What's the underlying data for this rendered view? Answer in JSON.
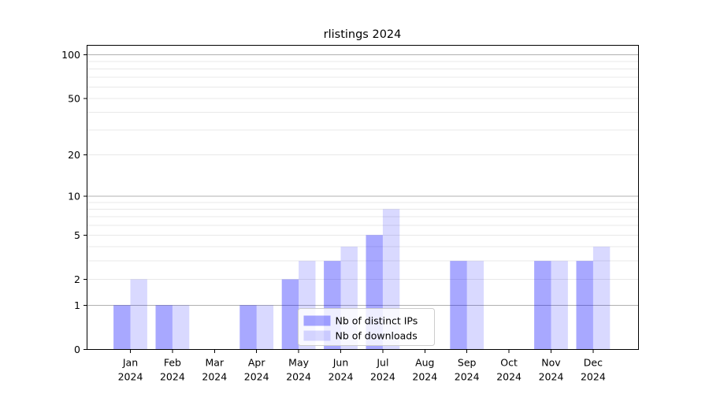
{
  "chart_data": {
    "type": "bar",
    "title": "rlistings 2024",
    "categories": [
      "Jan",
      "Feb",
      "Mar",
      "Apr",
      "May",
      "Jun",
      "Jul",
      "Aug",
      "Sep",
      "Oct",
      "Nov",
      "Dec"
    ],
    "x_tick_line2": "2024",
    "series": [
      {
        "name": "Nb of distinct IPs",
        "color": "#0000ff",
        "fill_opacity": 0.34,
        "values": [
          1,
          1,
          0,
          1,
          2,
          3,
          5,
          0,
          3,
          0,
          3,
          3
        ]
      },
      {
        "name": "Nb of downloads",
        "color": "#0000ff",
        "fill_opacity": 0.15,
        "values": [
          2,
          1,
          0,
          1,
          3,
          4,
          8,
          0,
          3,
          0,
          3,
          4
        ]
      }
    ],
    "y_axis": {
      "scale": "log1p",
      "tick_values": [
        0,
        1,
        2,
        5,
        10,
        20,
        50,
        100
      ],
      "major_grid": [
        1,
        10,
        100
      ],
      "minor_grid": [
        2,
        3,
        4,
        5,
        6,
        7,
        8,
        9,
        20,
        30,
        40,
        50,
        60,
        70,
        80,
        90
      ],
      "ylim": [
        0,
        116
      ]
    },
    "legend": {
      "position": "lower center",
      "background": "rgba(255,255,255,0.8)",
      "border_color": "#cccccc"
    },
    "colors": {
      "major_grid": "#b0b0b0",
      "minor_grid": "#e8e8e8",
      "spine": "#000000",
      "text": "#000000"
    },
    "grid": true,
    "legend_entries": [
      "Nb of distinct IPs",
      "Nb of downloads"
    ]
  }
}
